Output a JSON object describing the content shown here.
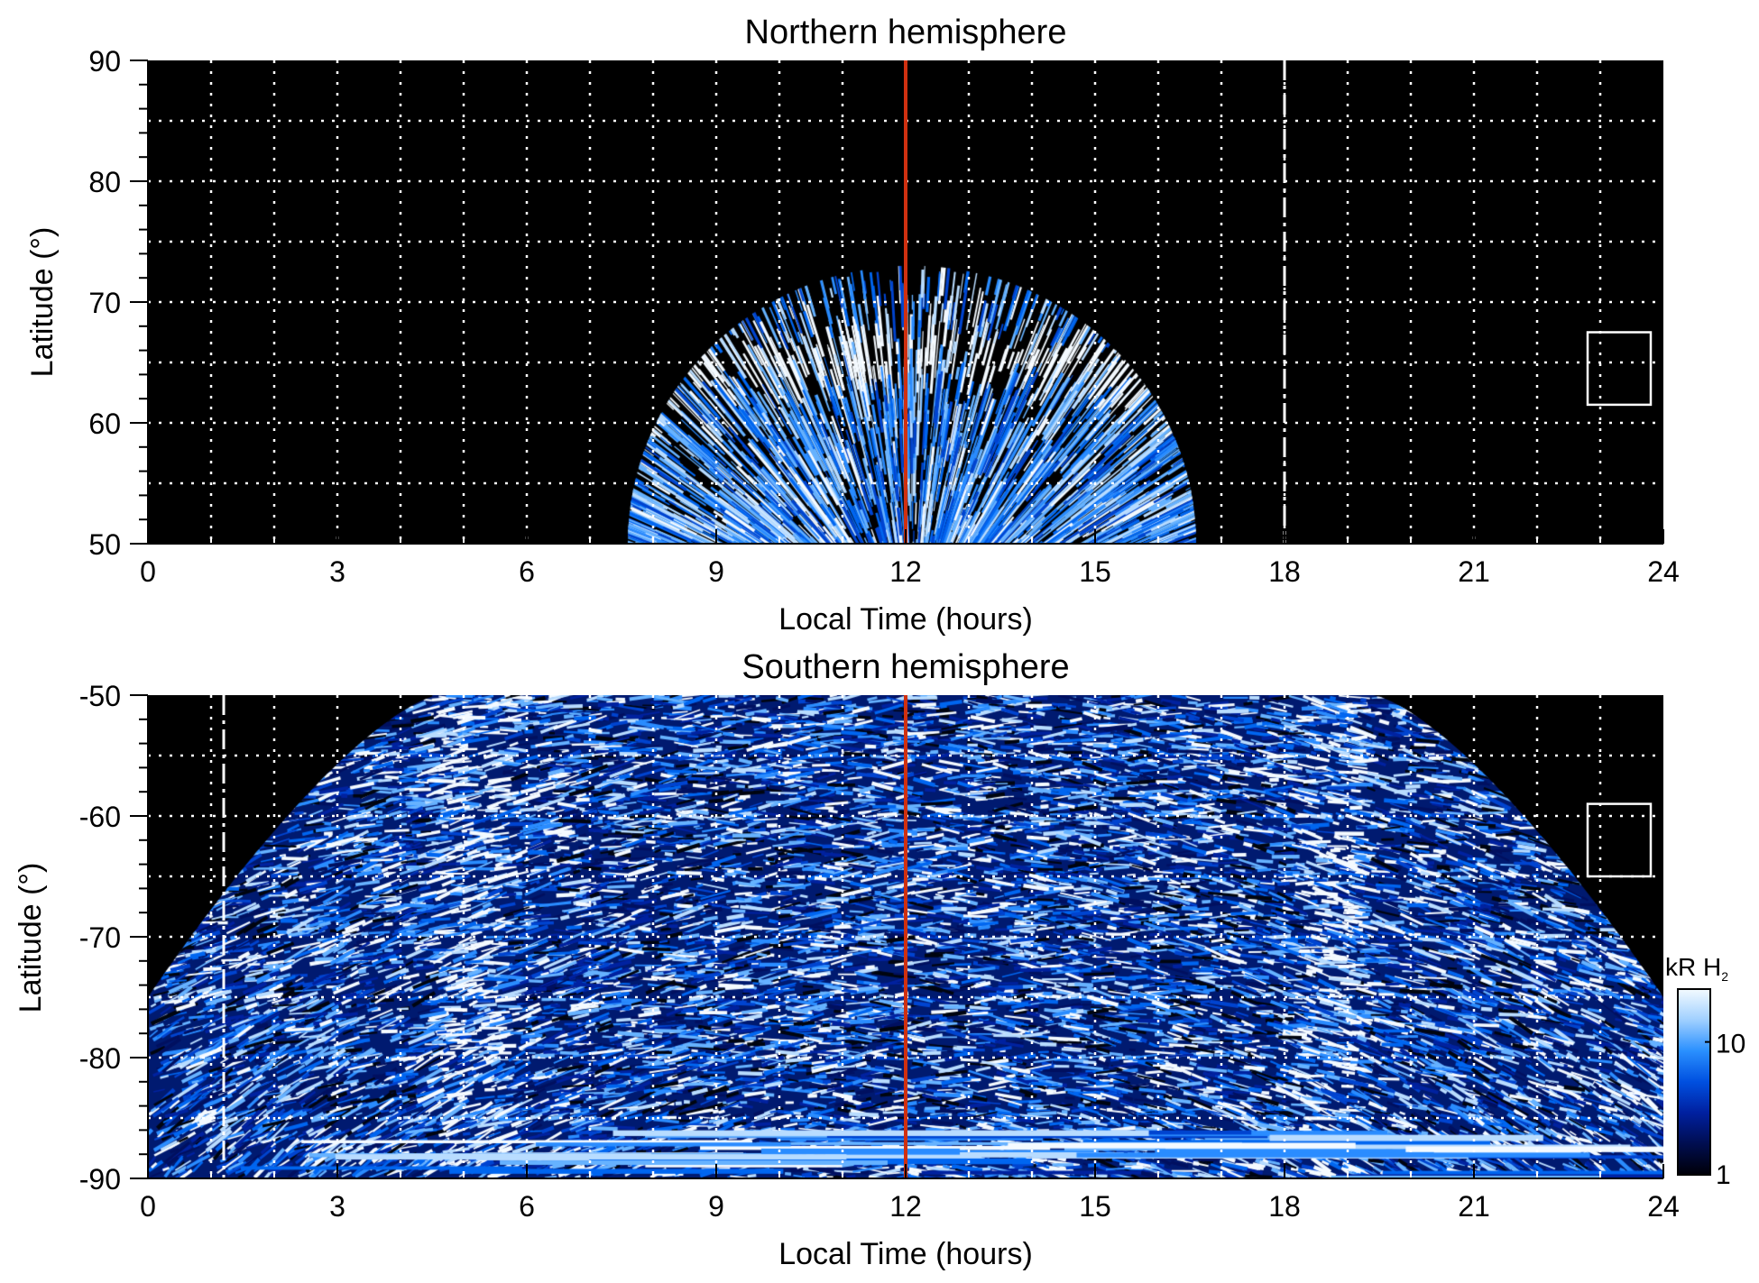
{
  "chart_data": [
    {
      "type": "heatmap",
      "title": "Northern hemisphere",
      "xlabel": "Local Time (hours)",
      "ylabel": "Latitude (°)",
      "xlim": [
        0,
        24
      ],
      "ylim": [
        50,
        90
      ],
      "xticks": [
        "0",
        "3",
        "6",
        "9",
        "12",
        "15",
        "18",
        "21",
        "24"
      ],
      "yticks": [
        "50",
        "60",
        "70",
        "80",
        "90"
      ],
      "grid": true,
      "noon_line_hours": 12,
      "dashed_line_hours": 18,
      "box": {
        "lt": [
          22.8,
          23.8
        ],
        "lat": [
          61.5,
          67.5
        ]
      }
    },
    {
      "type": "heatmap",
      "title": "Southern hemisphere",
      "xlabel": "Local Time (hours)",
      "ylabel": "Latitude (°)",
      "xlim": [
        0,
        24
      ],
      "ylim": [
        -90,
        -50
      ],
      "xticks": [
        "0",
        "3",
        "6",
        "9",
        "12",
        "15",
        "18",
        "21",
        "24"
      ],
      "yticks": [
        "-90",
        "-80",
        "-70",
        "-60",
        "-50"
      ],
      "grid": true,
      "noon_line_hours": 12,
      "dashed_line_hours": 1.2,
      "box": {
        "lt": [
          22.8,
          23.8
        ],
        "lat": [
          -65,
          -59
        ]
      },
      "colorbar": {
        "label": "kR H",
        "label_sub": "2",
        "scale": "log",
        "range": [
          1,
          25
        ],
        "ticks": [
          "1",
          "10"
        ]
      }
    }
  ],
  "colors": {
    "noon_line": "#d03010",
    "grid": "#ffffff",
    "background": "#000000"
  }
}
